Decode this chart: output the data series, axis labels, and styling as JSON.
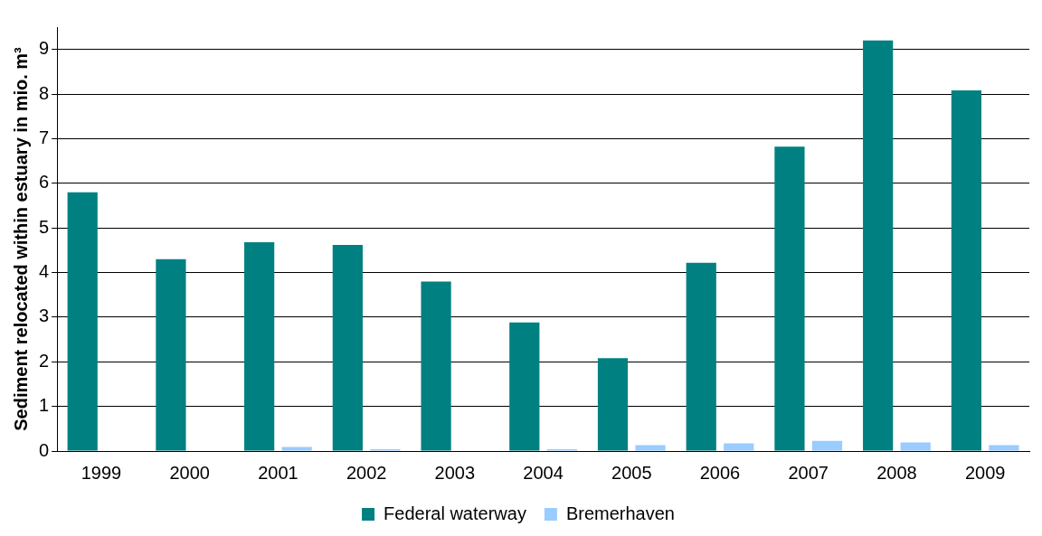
{
  "chart_data": {
    "type": "bar",
    "ylabel": "Sediment relocated within estuary in mio. m³",
    "categories": [
      "1999",
      "2000",
      "2001",
      "2002",
      "2003",
      "2004",
      "2005",
      "2006",
      "2007",
      "2008",
      "2009"
    ],
    "series": [
      {
        "name": "Federal waterway",
        "color": "#008080",
        "values": [
          5.8,
          4.3,
          4.68,
          4.62,
          3.8,
          2.88,
          2.08,
          4.22,
          6.82,
          9.2,
          8.08
        ]
      },
      {
        "name": "Bremerhaven",
        "color": "#99ccff",
        "values": [
          0,
          0,
          0.09,
          0.04,
          0,
          0.04,
          0.13,
          0.17,
          0.23,
          0.19,
          0.13
        ]
      }
    ],
    "ylim": [
      0,
      9.5
    ],
    "yticks": [
      0,
      1,
      2,
      3,
      4,
      5,
      6,
      7,
      8,
      9
    ],
    "grid": "y",
    "legend": "bottom"
  }
}
